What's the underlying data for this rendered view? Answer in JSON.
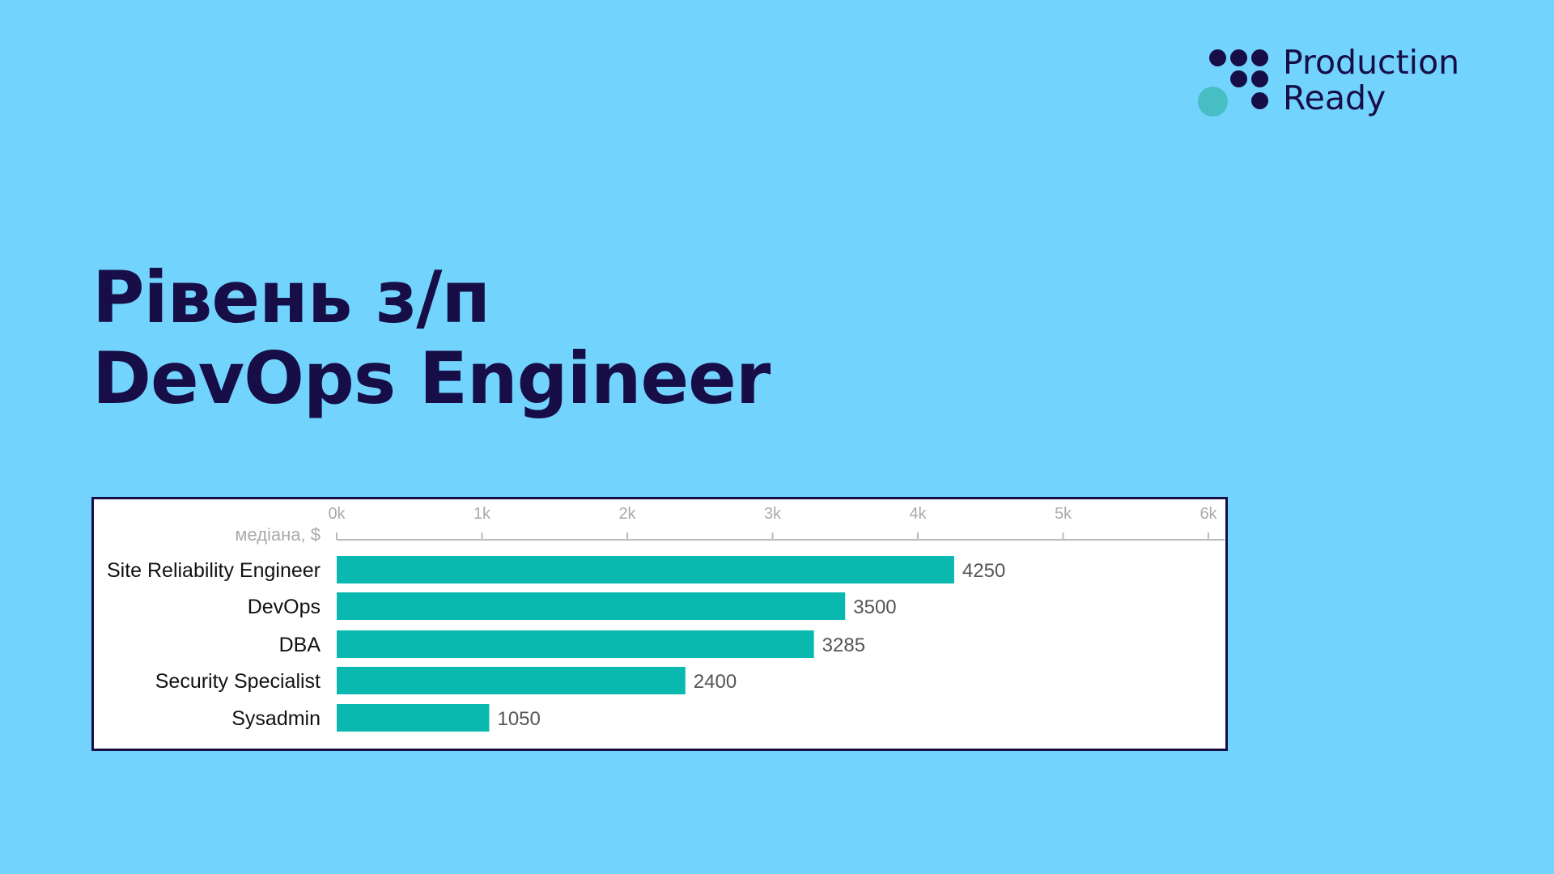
{
  "brand": {
    "line1": "Production",
    "line2": "Ready",
    "colors": {
      "dots": "#170d47",
      "accent_dot": "#46bec4"
    }
  },
  "title": {
    "line1": "Рівень з/п",
    "line2": "DevOps Engineer"
  },
  "background_color": "#72d4fd",
  "chart_data": {
    "type": "bar",
    "orientation": "horizontal",
    "axis_label": "медіана, $",
    "categories": [
      "Site Reliability Engineer",
      "DevOps",
      "DBA",
      "Security Specialist",
      "Sysadmin"
    ],
    "values": [
      4250,
      3500,
      3285,
      2400,
      1050
    ],
    "value_labels": [
      "4250",
      "3500",
      "3285",
      "2400",
      "1050"
    ],
    "xlim": [
      0,
      6000
    ],
    "ticks": [
      0,
      1000,
      2000,
      3000,
      4000,
      5000,
      6000
    ],
    "tick_labels": [
      "0k",
      "1k",
      "2k",
      "3k",
      "4k",
      "5k",
      "6k"
    ],
    "axis_position": "top",
    "grid": false,
    "bar_color": "#09b9b0"
  }
}
